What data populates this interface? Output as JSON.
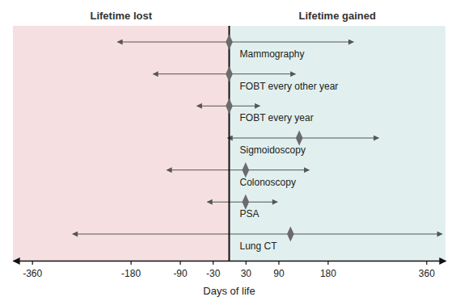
{
  "chart_data": {
    "type": "forest",
    "left_label": "Lifetime lost",
    "right_label": "Lifetime gained",
    "x_label": "Days of life",
    "categories": [
      "Mammography",
      "FOBT every other year",
      "FOBT every year",
      "Sigmoidoscopy",
      "Colonoscopy",
      "PSA",
      "Lung CT"
    ],
    "values": [
      0,
      0,
      0,
      128,
      30,
      30,
      112
    ],
    "lower": [
      -204,
      -139,
      -59,
      -3,
      -114,
      -40,
      -286
    ],
    "upper": [
      227,
      121,
      56,
      273,
      146,
      88,
      389
    ],
    "reference_x": 0,
    "color": "#6b6b6b",
    "xlim": [
      -395,
      395
    ],
    "xticks": [
      -360,
      -180,
      -90,
      -30,
      30,
      90,
      180,
      360
    ]
  }
}
